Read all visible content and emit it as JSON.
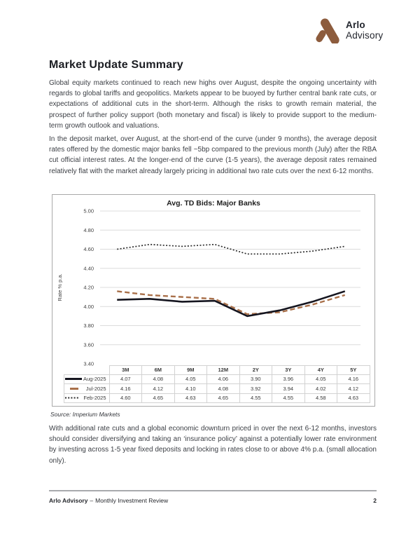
{
  "page": {
    "brand": {
      "name_top": "Arlo",
      "name_bottom": "Advisory"
    },
    "title": "Market Update Summary",
    "paragraphs": {
      "p1": "Global equity markets continued to reach new highs over August, despite the ongoing uncertainty with regards to global tariffs and geopolitics. Markets appear to be buoyed by further central bank rate cuts, or expectations of additional cuts in the short-term. Although the risks to growth remain material, the prospect of further policy support (both monetary and fiscal) is likely to provide support to the medium-term growth outlook and valuations.",
      "p2": "In the deposit market, over August, at the short-end of the curve (under 9 months), the average deposit rates offered by the domestic major banks fell ~5bp compared to the previous month (July) after the RBA cut official interest rates. At the longer-end of the curve (1-5 years), the average deposit rates remained relatively flat with the market already largely pricing in additional two rate cuts over the next 6-12 months.",
      "p3": "With additional rate cuts and a global economic downturn priced in over the next 6-12 months, investors should consider diversifying and taking an ‘insurance policy’ against a potentially lower rate environment by investing across 1-5 year fixed deposits and locking in rates close to or above 4% p.a. (small allocation only)."
    },
    "source_note": "Source: Imperium Markets",
    "footer": {
      "brand": "Arlo Advisory",
      "separator": "–",
      "doc_title": "Monthly Investment Review",
      "page_number": "2"
    }
  },
  "colors": {
    "brand_brown": "#8d5c3d",
    "grid": "#dcdcdc",
    "series_aug": "#15151f",
    "series_jul": "#a9704a",
    "series_feb": "#2b2b2b"
  },
  "chart_data": {
    "type": "line",
    "title": "Avg. TD Bids: Major Banks",
    "xlabel": "",
    "ylabel": "Rate % p.a.",
    "categories": [
      "3M",
      "6M",
      "9M",
      "12M",
      "2Y",
      "3Y",
      "4Y",
      "5Y"
    ],
    "series": [
      {
        "name": "Aug-2025",
        "style": "solid",
        "color": "#15151f",
        "values": [
          4.07,
          4.08,
          4.05,
          4.06,
          3.9,
          3.96,
          4.05,
          4.16
        ]
      },
      {
        "name": "Jul-2025",
        "style": "dashed",
        "color": "#a9704a",
        "values": [
          4.16,
          4.12,
          4.1,
          4.08,
          3.92,
          3.94,
          4.02,
          4.12
        ]
      },
      {
        "name": "Feb-2025",
        "style": "dotted",
        "color": "#2b2b2b",
        "values": [
          4.6,
          4.65,
          4.63,
          4.65,
          4.55,
          4.55,
          4.58,
          4.63
        ]
      }
    ],
    "ylim": [
      3.4,
      5.0
    ],
    "yticks": [
      5.0,
      4.8,
      4.6,
      4.4,
      4.2,
      4.0,
      3.8,
      3.6,
      3.4
    ],
    "grid": true,
    "legend_position": "table-left",
    "source": "Imperium Markets"
  }
}
